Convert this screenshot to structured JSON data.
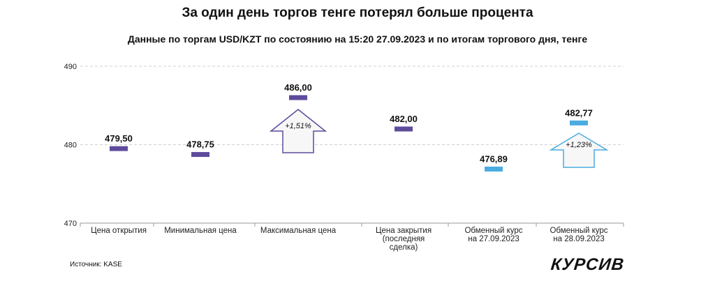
{
  "chart_data": {
    "type": "bar",
    "title": "За один день торгов тенге потерял больше процента",
    "subtitle": "Данные по торгам USD/KZT по состоянию на 15:20 27.09.2023 и по итогам торгового дня, тенге",
    "ylim": [
      470,
      490
    ],
    "yticks": [
      "470",
      "480",
      "490"
    ],
    "categories": [
      [
        "Цена открытия"
      ],
      [
        "Минимальная цена"
      ],
      [
        "Максимальная цена"
      ],
      [
        "Цена закрытия",
        "(последняя",
        "сделка)"
      ],
      [
        "Обменный курс",
        "на 27.09.2023"
      ],
      [
        "Обменный курс",
        "на 28.09.2023"
      ]
    ],
    "values": [
      479.5,
      478.75,
      486.0,
      482.0,
      476.89,
      482.77
    ],
    "value_labels": [
      "479,50",
      "478,75",
      "486,00",
      "482,00",
      "476,89",
      "482,77"
    ],
    "colors": [
      "#5e4b9c",
      "#5e4b9c",
      "#5e4b9c",
      "#5e4b9c",
      "#4aace0",
      "#4aace0"
    ],
    "arrows": [
      {
        "category_index": 2,
        "label": "+1,51%",
        "color": "#5e4b9c"
      },
      {
        "category_index": 5,
        "label": "+1,23%",
        "color": "#4aace0"
      }
    ]
  },
  "source": "Источник: KASE",
  "logo": "КУРСИВ"
}
